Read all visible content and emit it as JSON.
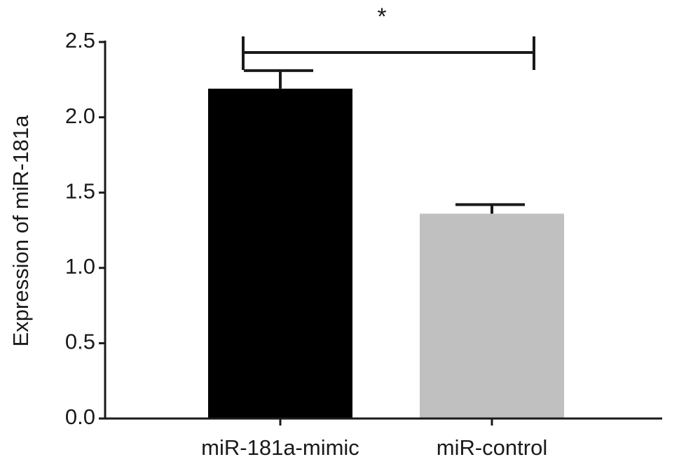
{
  "chart_data": {
    "type": "bar",
    "y_label": "Expression of miR-181a",
    "categories": [
      "miR-181a-mimic",
      "miR-control"
    ],
    "values": [
      2.19,
      1.36
    ],
    "errors": [
      0.12,
      0.06
    ],
    "colors": [
      "#000000",
      "#c0c0c0"
    ],
    "ylim": [
      0,
      2.5
    ],
    "yticks": [
      {
        "value": 0,
        "label": "0.0"
      },
      0.5,
      {
        "value": 1,
        "label": "1.0"
      },
      1.5,
      {
        "value": 2,
        "label": "2.0"
      },
      2.5
    ],
    "significance": "*"
  }
}
